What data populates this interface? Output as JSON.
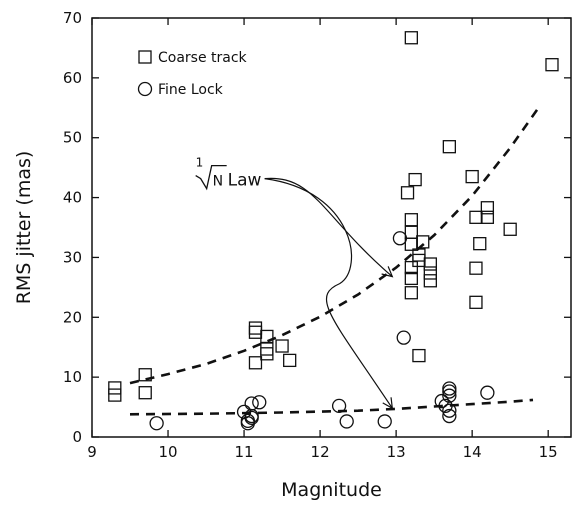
{
  "chart_data": {
    "type": "scatter",
    "xlabel": "Magnitude",
    "ylabel": "RMS jitter (mas)",
    "xlim": [
      9,
      15.3
    ],
    "ylim": [
      0,
      70
    ],
    "xticks": [
      9,
      10,
      11,
      12,
      13,
      14,
      15
    ],
    "yticks": [
      0,
      10,
      20,
      30,
      40,
      50,
      60,
      70
    ],
    "grid": false,
    "legend_placement": "top-left",
    "series": [
      {
        "name": "Coarse track",
        "marker": "square",
        "points": [
          [
            9.3,
            8.2
          ],
          [
            9.3,
            7.0
          ],
          [
            9.7,
            10.4
          ],
          [
            9.7,
            7.4
          ],
          [
            11.15,
            18.2
          ],
          [
            11.15,
            17.5
          ],
          [
            11.15,
            12.4
          ],
          [
            11.3,
            16.8
          ],
          [
            11.3,
            14.7
          ],
          [
            11.3,
            13.9
          ],
          [
            11.5,
            15.2
          ],
          [
            11.6,
            12.8
          ],
          [
            13.2,
            66.7
          ],
          [
            13.15,
            40.8
          ],
          [
            13.25,
            43.0
          ],
          [
            13.2,
            36.3
          ],
          [
            13.2,
            34.2
          ],
          [
            13.2,
            32.2
          ],
          [
            13.3,
            30.4
          ],
          [
            13.3,
            29.5
          ],
          [
            13.35,
            32.6
          ],
          [
            13.2,
            28.3
          ],
          [
            13.2,
            26.5
          ],
          [
            13.2,
            24.1
          ],
          [
            13.45,
            28.9
          ],
          [
            13.45,
            27.4
          ],
          [
            13.45,
            26.1
          ],
          [
            13.3,
            13.6
          ],
          [
            13.7,
            48.5
          ],
          [
            14.0,
            43.5
          ],
          [
            14.05,
            36.7
          ],
          [
            14.2,
            38.3
          ],
          [
            14.2,
            36.7
          ],
          [
            14.1,
            32.3
          ],
          [
            14.05,
            28.2
          ],
          [
            14.05,
            22.5
          ],
          [
            14.5,
            34.7
          ],
          [
            15.05,
            62.2
          ]
        ]
      },
      {
        "name": "Fine Lock",
        "marker": "circle",
        "points": [
          [
            9.85,
            2.3
          ],
          [
            11.0,
            4.2
          ],
          [
            11.05,
            2.7
          ],
          [
            11.1,
            3.2
          ],
          [
            11.1,
            5.6
          ],
          [
            11.2,
            5.8
          ],
          [
            11.05,
            2.3
          ],
          [
            11.1,
            3.5
          ],
          [
            12.25,
            5.2
          ],
          [
            12.35,
            2.6
          ],
          [
            12.85,
            2.6
          ],
          [
            13.05,
            33.2
          ],
          [
            13.1,
            16.6
          ],
          [
            13.6,
            6.0
          ],
          [
            13.7,
            8.1
          ],
          [
            13.7,
            7.6
          ],
          [
            13.7,
            6.9
          ],
          [
            13.65,
            5.2
          ],
          [
            13.7,
            4.4
          ],
          [
            13.7,
            3.5
          ],
          [
            14.2,
            7.4
          ]
        ]
      }
    ],
    "fit_curves": [
      {
        "style": "dashed",
        "points": [
          [
            9.5,
            9.0
          ],
          [
            10.0,
            10.5
          ],
          [
            10.5,
            12.2
          ],
          [
            11.0,
            14.4
          ],
          [
            11.5,
            17.0
          ],
          [
            12.0,
            20.1
          ],
          [
            12.5,
            23.8
          ],
          [
            13.0,
            28.3
          ],
          [
            13.5,
            33.7
          ],
          [
            14.0,
            40.3
          ],
          [
            14.5,
            48.3
          ],
          [
            14.9,
            55.5
          ]
        ]
      },
      {
        "style": "dashed",
        "points": [
          [
            9.5,
            3.8
          ],
          [
            10.5,
            3.9
          ],
          [
            11.5,
            4.1
          ],
          [
            12.5,
            4.4
          ],
          [
            13.0,
            4.7
          ],
          [
            13.5,
            5.1
          ],
          [
            14.0,
            5.5
          ],
          [
            14.5,
            5.9
          ],
          [
            14.8,
            6.2
          ]
        ]
      }
    ],
    "annotation": {
      "radical_index": "1",
      "radicand": "N",
      "suffix": "Law",
      "anchor": [
        11.1,
        43.0
      ],
      "arrow_targets": [
        [
          12.95,
          26.8
        ],
        [
          12.95,
          4.8
        ]
      ]
    }
  }
}
